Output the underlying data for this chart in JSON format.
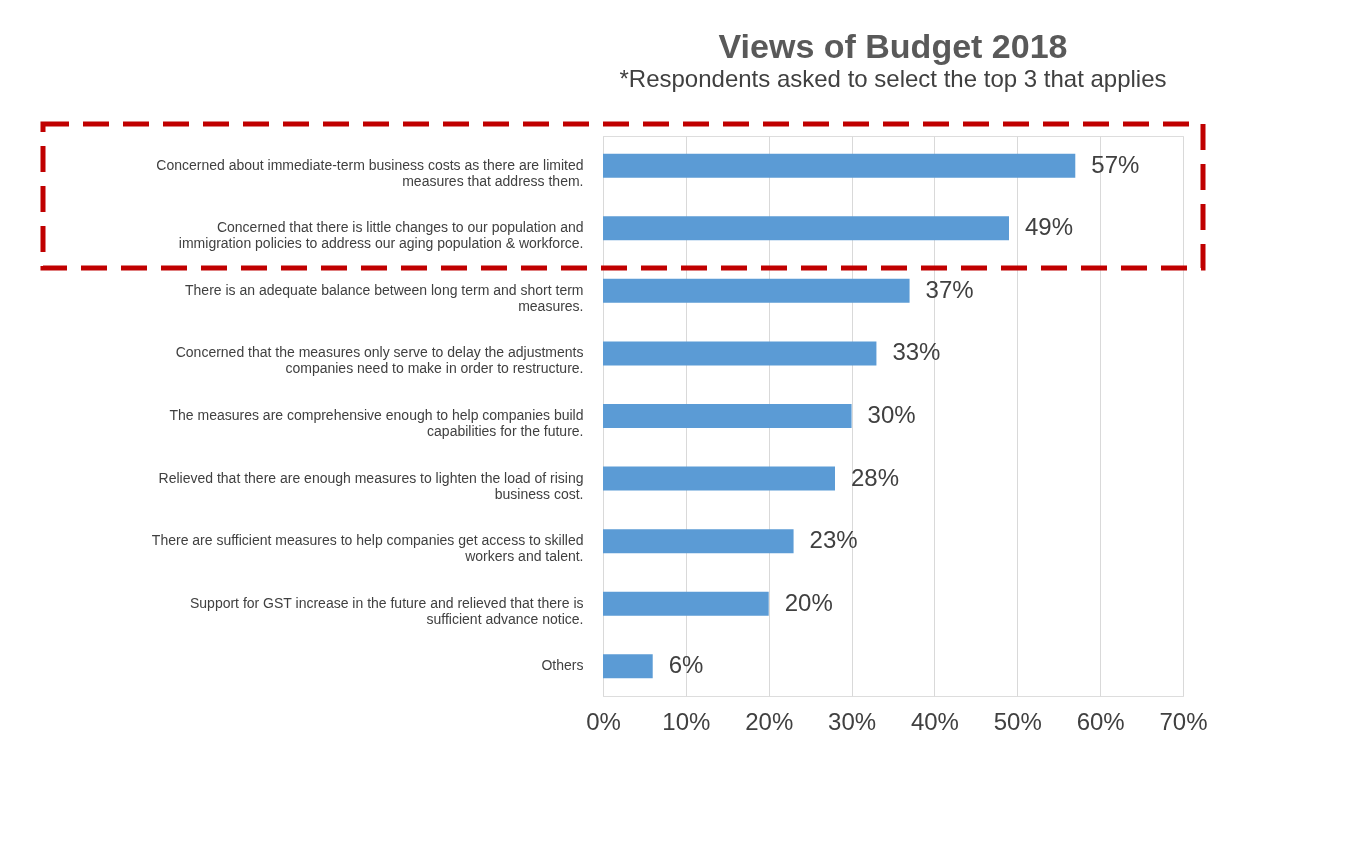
{
  "chart_data": {
    "type": "bar",
    "orientation": "horizontal",
    "title": "Views of Budget 2018",
    "subtitle": "*Respondents asked to select the top 3 that applies",
    "categories": [
      "Concerned about immediate-term business costs as there are limited\nmeasures that address them.",
      "Concerned that there is little changes to our population and\nimmigration policies to address our aging population & workforce.",
      "There is an adequate balance between long term and short term\nmeasures.",
      "Concerned that the measures only serve to delay the adjustments\ncompanies need to make in order to restructure.",
      "The measures are comprehensive enough to help companies build\ncapabilities for the future.",
      "Relieved that there are enough measures to lighten the load of rising\nbusiness cost.",
      "There are sufficient measures to help companies get access to skilled\nworkers and talent.",
      "Support for GST increase in the future and relieved that there is\nsufficient advance notice.",
      "Others"
    ],
    "values": [
      57,
      49,
      37,
      33,
      30,
      28,
      23,
      20,
      6
    ],
    "value_labels": [
      "57%",
      "49%",
      "37%",
      "33%",
      "30%",
      "28%",
      "23%",
      "20%",
      "6%"
    ],
    "color": "#5b9bd5",
    "xlim": [
      0,
      70
    ],
    "xticks": [
      {
        "value": 0,
        "label": "0%"
      },
      {
        "value": 10,
        "label": "10%"
      },
      {
        "value": 20,
        "label": "20%"
      },
      {
        "value": 30,
        "label": "30%"
      },
      {
        "value": 40,
        "label": "40%"
      },
      {
        "value": 50,
        "label": "50%"
      },
      {
        "value": 60,
        "label": "60%"
      },
      {
        "value": 70,
        "label": "70%"
      }
    ],
    "grid": "x"
  }
}
